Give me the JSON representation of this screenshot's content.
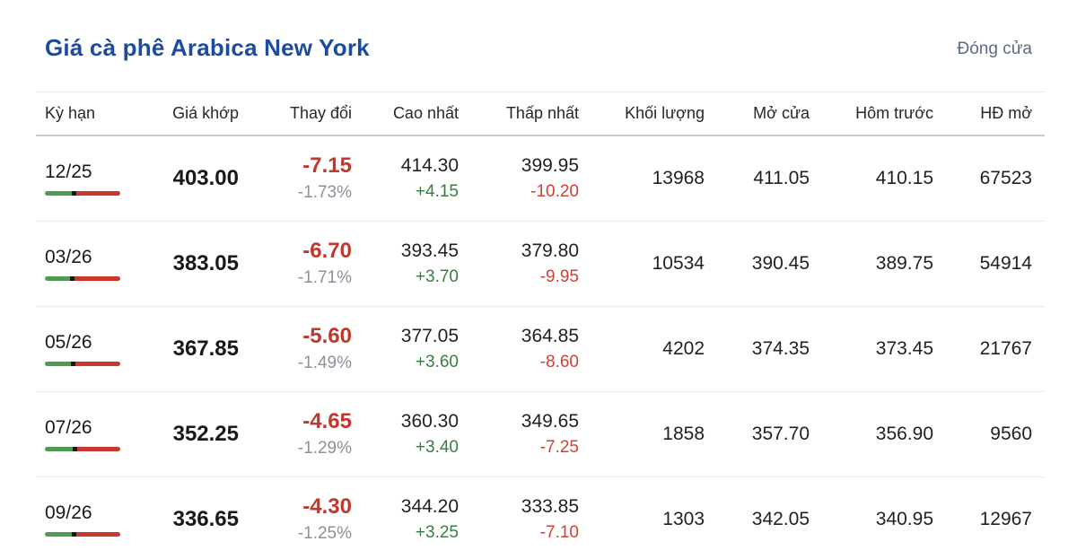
{
  "header": {
    "title": "Giá cà phê Arabica New York",
    "status": "Đóng cửa"
  },
  "colors": {
    "title_blue": "#1d4b9f",
    "status_gray_blue": "#5b6b86",
    "negative_red": "#c0372b",
    "negative_red_light": "#cf4133",
    "positive_green": "#3a7d40",
    "bar_green": "#4f9b52",
    "bar_red": "#c9382c",
    "secondary_gray": "#8b9099"
  },
  "table": {
    "columns": [
      {
        "key": "term",
        "label": "Kỳ hạn"
      },
      {
        "key": "last",
        "label": "Giá khớp"
      },
      {
        "key": "change",
        "label": "Thay đổi"
      },
      {
        "key": "high",
        "label": "Cao nhất"
      },
      {
        "key": "low",
        "label": "Thấp nhất"
      },
      {
        "key": "volume",
        "label": "Khối lượng"
      },
      {
        "key": "open",
        "label": "Mở cửa"
      },
      {
        "key": "prev",
        "label": "Hôm trước"
      },
      {
        "key": "open_interest",
        "label": "HĐ mở"
      }
    ],
    "rows": [
      {
        "term": "12/25",
        "last": "403.00",
        "change": "-7.15",
        "change_pct": "-1.73%",
        "high": "414.30",
        "high_diff": "+4.15",
        "low": "399.95",
        "low_diff": "-10.20",
        "volume": "13968",
        "open": "411.05",
        "prev": "410.15",
        "open_interest": "67523",
        "bar": {
          "green_pct": 36,
          "black_pct": 6
        }
      },
      {
        "term": "03/26",
        "last": "383.05",
        "change": "-6.70",
        "change_pct": "-1.71%",
        "high": "393.45",
        "high_diff": "+3.70",
        "low": "379.80",
        "low_diff": "-9.95",
        "volume": "10534",
        "open": "390.45",
        "prev": "389.75",
        "open_interest": "54914",
        "bar": {
          "green_pct": 33,
          "black_pct": 6
        }
      },
      {
        "term": "05/26",
        "last": "367.85",
        "change": "-5.60",
        "change_pct": "-1.49%",
        "high": "377.05",
        "high_diff": "+3.60",
        "low": "364.85",
        "low_diff": "-8.60",
        "volume": "4202",
        "open": "374.35",
        "prev": "373.45",
        "open_interest": "21767",
        "bar": {
          "green_pct": 35,
          "black_pct": 6
        }
      },
      {
        "term": "07/26",
        "last": "352.25",
        "change": "-4.65",
        "change_pct": "-1.29%",
        "high": "360.30",
        "high_diff": "+3.40",
        "low": "349.65",
        "low_diff": "-7.25",
        "volume": "1858",
        "open": "357.70",
        "prev": "356.90",
        "open_interest": "9560",
        "bar": {
          "green_pct": 37,
          "black_pct": 6
        }
      },
      {
        "term": "09/26",
        "last": "336.65",
        "change": "-4.30",
        "change_pct": "-1.25%",
        "high": "344.20",
        "high_diff": "+3.25",
        "low": "333.85",
        "low_diff": "-7.10",
        "volume": "1303",
        "open": "342.05",
        "prev": "340.95",
        "open_interest": "12967",
        "bar": {
          "green_pct": 36,
          "black_pct": 6
        }
      }
    ]
  }
}
